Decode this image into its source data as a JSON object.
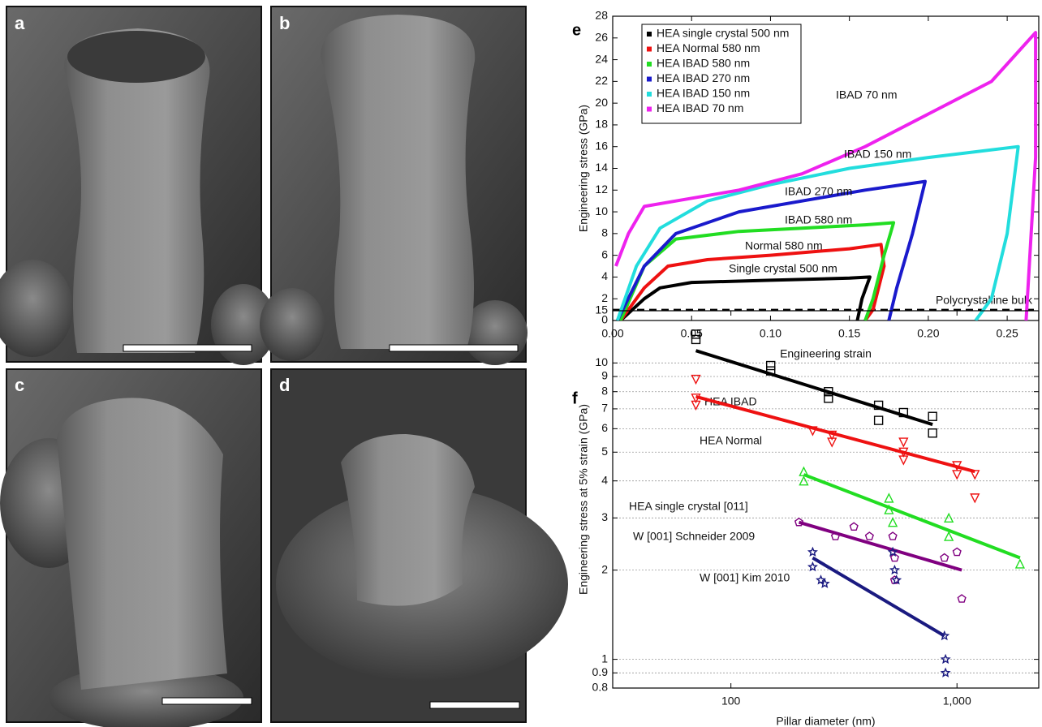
{
  "panels": [
    "a",
    "b",
    "c",
    "d"
  ],
  "chart_data": [
    {
      "type": "line",
      "panel": "e",
      "xlabel": "Engineering strain",
      "ylabel": "Engineering stress (GPa)",
      "xlim": [
        0,
        0.27
      ],
      "ylim": [
        0,
        28
      ],
      "xticks": [
        {
          "value": 0,
          "label": "0.00"
        },
        {
          "value": 0.05,
          "label": "0.05"
        },
        {
          "value": 0.1,
          "label": "0.10"
        },
        {
          "value": 0.15,
          "label": "0.15"
        },
        {
          "value": 0.2,
          "label": "0.20"
        },
        {
          "value": 0.25,
          "label": "0.25"
        }
      ],
      "yticks": [
        0,
        2,
        4,
        6,
        8,
        10,
        12,
        14,
        16,
        18,
        20,
        22,
        24,
        26,
        28
      ],
      "legend": "upper left",
      "series": [
        {
          "name": "HEA single crystal 500 nm",
          "color": "#000000",
          "x": [
            0.005,
            0.02,
            0.03,
            0.05,
            0.1,
            0.15,
            0.163,
            0.158,
            0.155
          ],
          "values": [
            0,
            2,
            3,
            3.5,
            3.7,
            3.9,
            4.0,
            2,
            0
          ]
        },
        {
          "name": "HEA Normal 580 nm",
          "color": "#ee1111",
          "x": [
            0.005,
            0.02,
            0.035,
            0.06,
            0.1,
            0.15,
            0.17,
            0.172,
            0.165,
            0.16
          ],
          "values": [
            0,
            3,
            5,
            5.6,
            6.0,
            6.6,
            7.0,
            5,
            1,
            0
          ]
        },
        {
          "name": "HEA IBAD 580 nm",
          "color": "#22dd22",
          "x": [
            0.005,
            0.02,
            0.04,
            0.08,
            0.12,
            0.16,
            0.178,
            0.172,
            0.165,
            0.16
          ],
          "values": [
            0,
            5,
            7.5,
            8.2,
            8.5,
            8.8,
            9.0,
            6,
            2,
            0
          ]
        },
        {
          "name": "HEA IBAD 270 nm",
          "color": "#1a1acc",
          "x": [
            0.003,
            0.02,
            0.04,
            0.08,
            0.12,
            0.16,
            0.198,
            0.19,
            0.18,
            0.175
          ],
          "values": [
            0,
            5,
            8,
            10,
            11,
            12,
            12.8,
            8,
            3,
            0
          ]
        },
        {
          "name": "HEA IBAD 150 nm",
          "color": "#22dddd",
          "x": [
            0.003,
            0.015,
            0.03,
            0.06,
            0.1,
            0.15,
            0.2,
            0.257,
            0.25,
            0.24,
            0.23
          ],
          "values": [
            0,
            5,
            8.5,
            11,
            12.5,
            14,
            15,
            16,
            8,
            2,
            0
          ]
        },
        {
          "name": "HEA IBAD 70 nm",
          "color": "#ee22ee",
          "x": [
            0.002,
            0.01,
            0.02,
            0.04,
            0.08,
            0.12,
            0.16,
            0.2,
            0.24,
            0.268,
            0.268,
            0.262
          ],
          "values": [
            5,
            8,
            10.5,
            11,
            12,
            13.5,
            16,
            19,
            22,
            26.5,
            15,
            0
          ]
        }
      ],
      "annotations": [
        "IBAD 70 nm",
        "IBAD 150 nm",
        "IBAD 270 nm",
        "IBAD 580 nm",
        "Normal 580 nm",
        "Single crystal 500 nm"
      ],
      "reference_line": {
        "value": 1,
        "label": "Polycrystalline bulk"
      }
    },
    {
      "type": "scatter",
      "panel": "f",
      "xlabel": "Pillar diameter (nm)",
      "ylabel": "Engineering stress at 5% strain (GPa)",
      "xscale": "log",
      "yscale": "log",
      "grid": true,
      "xlim": [
        30,
        2300
      ],
      "ylim": [
        0.8,
        15
      ],
      "xticks": [
        100,
        {
          "value": 1000,
          "label": "1,000"
        }
      ],
      "yticks": [
        0.8,
        0.9,
        1,
        2,
        3,
        4,
        5,
        6,
        7,
        8,
        9,
        10,
        15
      ],
      "series": [
        {
          "name": "HEA IBAD",
          "color": "#000000",
          "marker": "square",
          "x": [
            70,
            70,
            150,
            150,
            270,
            270,
            450,
            450,
            580,
            780,
            780
          ],
          "values": [
            12.5,
            12,
            9.8,
            9.4,
            8,
            7.6,
            7.2,
            6.4,
            6.8,
            6.6,
            5.8
          ],
          "fit": {
            "x": [
              70,
              780
            ],
            "values": [
              11,
              6.2
            ]
          }
        },
        {
          "name": "HEA Normal",
          "color": "#ee1111",
          "marker": "tri-down",
          "x": [
            70,
            70,
            70,
            230,
            280,
            280,
            580,
            580,
            580,
            1000,
            1000,
            1200,
            1200
          ],
          "values": [
            8.8,
            7.6,
            7.2,
            5.9,
            5.7,
            5.4,
            5.4,
            5.0,
            4.7,
            4.5,
            4.2,
            4.2,
            3.5
          ],
          "fit": {
            "x": [
              70,
              1200
            ],
            "values": [
              7.7,
              4.3
            ]
          }
        },
        {
          "name": "HEA single crystal [011]",
          "color": "#22dd22",
          "marker": "tri-up",
          "x": [
            210,
            210,
            500,
            500,
            520,
            920,
            920,
            1900
          ],
          "values": [
            4.3,
            4.0,
            3.5,
            3.2,
            2.9,
            3.0,
            2.6,
            2.1
          ],
          "fit": {
            "x": [
              210,
              1900
            ],
            "values": [
              4.2,
              2.2
            ]
          }
        },
        {
          "name": "W [001] Schneider 2009",
          "color": "#800080",
          "marker": "pentagon",
          "x": [
            200,
            290,
            350,
            410,
            520,
            530,
            530,
            880,
            1000,
            1050
          ],
          "values": [
            2.9,
            2.6,
            2.8,
            2.6,
            2.6,
            2.2,
            1.85,
            2.2,
            2.3,
            1.6
          ],
          "fit": {
            "x": [
              200,
              1050
            ],
            "values": [
              2.9,
              2.0
            ]
          }
        },
        {
          "name": "W [001] Kim 2010",
          "color": "#1a1a80",
          "marker": "star",
          "x": [
            230,
            230,
            250,
            260,
            520,
            530,
            540,
            880,
            890,
            890
          ],
          "values": [
            2.3,
            2.05,
            1.85,
            1.8,
            2.3,
            2.0,
            1.85,
            1.2,
            1.0,
            0.9
          ],
          "fit": {
            "x": [
              230,
              880
            ],
            "values": [
              2.2,
              1.2
            ]
          }
        }
      ]
    }
  ]
}
